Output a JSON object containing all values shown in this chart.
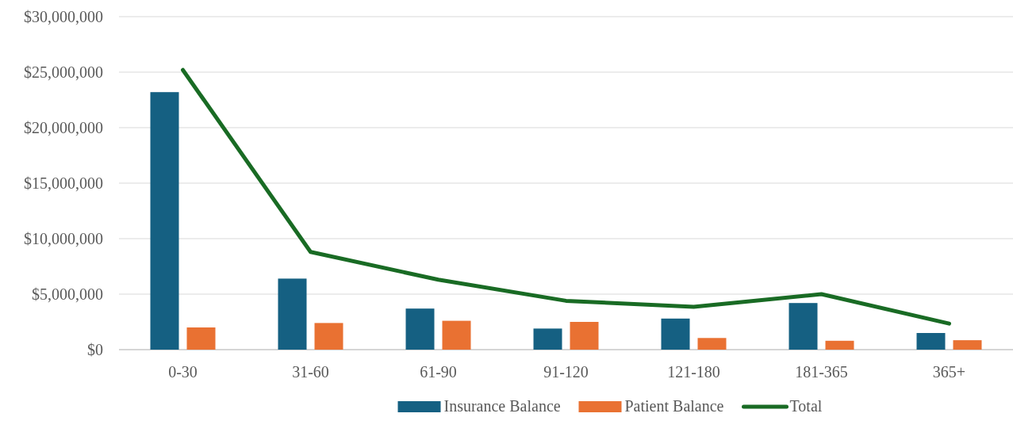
{
  "chart_data": {
    "type": "bar",
    "categories": [
      "0-30",
      "31-60",
      "61-90",
      "91-120",
      "121-180",
      "181-365",
      "365+"
    ],
    "series": [
      {
        "name": "Insurance Balance",
        "color": "#156082",
        "values": [
          23200000,
          6400000,
          3700000,
          1900000,
          2800000,
          4200000,
          1500000
        ]
      },
      {
        "name": "Patient Balance",
        "color": "#e97132",
        "values": [
          2000000,
          2400000,
          2600000,
          2500000,
          1050000,
          800000,
          850000
        ]
      },
      {
        "name": "Total",
        "type": "line",
        "color": "#196b24",
        "values": [
          25200000,
          8800000,
          6300000,
          4400000,
          3850000,
          5000000,
          2350000
        ]
      }
    ],
    "ylim": [
      0,
      30000000
    ],
    "yticks": [
      {
        "value": 0,
        "label": "$0"
      },
      {
        "value": 5000000,
        "label": "$5,000,000"
      },
      {
        "value": 10000000,
        "label": "$10,000,000"
      },
      {
        "value": 15000000,
        "label": "$15,000,000"
      },
      {
        "value": 20000000,
        "label": "$20,000,000"
      },
      {
        "value": 25000000,
        "label": "$25,000,000"
      },
      {
        "value": 30000000,
        "label": "$30,000,000"
      }
    ],
    "grid": "y",
    "legend": "bottom"
  }
}
